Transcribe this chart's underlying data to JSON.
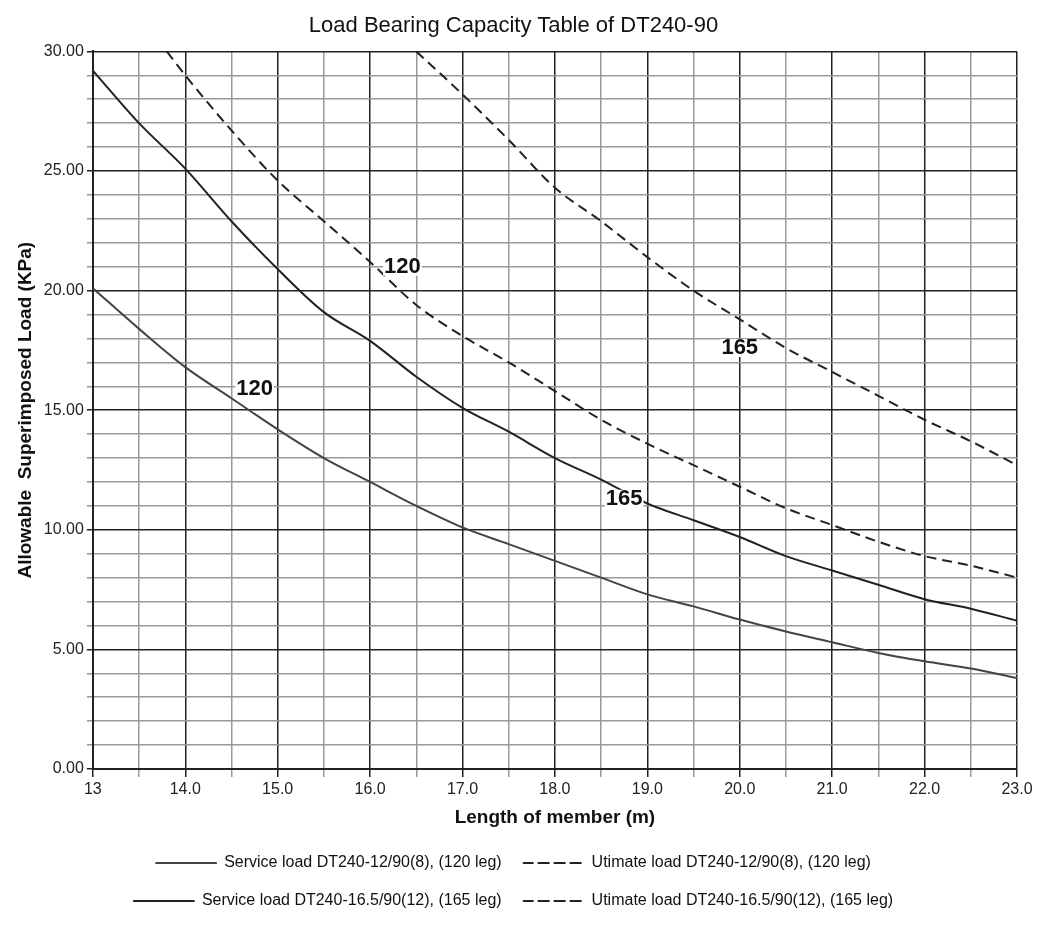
{
  "chart_data": {
    "type": "line",
    "title": "Load Bearing Capacity Table of DT240-90",
    "xlabel": "Length of member (m)",
    "ylabel": "Allowable  Superimposed Load (KPa)",
    "xlim": [
      13,
      23
    ],
    "xticks": [
      13,
      {
        "value": 13.5,
        "label": null
      },
      {
        "value": 14,
        "label": "14.0"
      },
      {
        "value": 14.5,
        "label": null
      },
      {
        "value": 15,
        "label": "15.0"
      },
      {
        "value": 15.5,
        "label": null
      },
      {
        "value": 16,
        "label": "16.0"
      },
      {
        "value": 16.5,
        "label": null
      },
      {
        "value": 17,
        "label": "17.0"
      },
      {
        "value": 17.5,
        "label": null
      },
      {
        "value": 18,
        "label": "18.0"
      },
      {
        "value": 18.5,
        "label": null
      },
      {
        "value": 19,
        "label": "19.0"
      },
      {
        "value": 19.5,
        "label": null
      },
      {
        "value": 20,
        "label": "20.0"
      },
      {
        "value": 20.5,
        "label": null
      },
      {
        "value": 21,
        "label": "21.0"
      },
      {
        "value": 21.5,
        "label": null
      },
      {
        "value": 22,
        "label": "22.0"
      },
      {
        "value": 22.5,
        "label": null
      },
      {
        "value": 23,
        "label": "23.0"
      }
    ],
    "ylim": [
      0,
      30
    ],
    "yticks": [
      {
        "value": 0,
        "label": "0.00"
      },
      {
        "value": 1,
        "label": null
      },
      {
        "value": 2,
        "label": null
      },
      {
        "value": 3,
        "label": null
      },
      {
        "value": 4,
        "label": null
      },
      {
        "value": 5,
        "label": "5.00"
      },
      {
        "value": 6,
        "label": null
      },
      {
        "value": 7,
        "label": null
      },
      {
        "value": 8,
        "label": null
      },
      {
        "value": 9,
        "label": null
      },
      {
        "value": 10,
        "label": "10.00"
      },
      {
        "value": 11,
        "label": null
      },
      {
        "value": 12,
        "label": null
      },
      {
        "value": 13,
        "label": null
      },
      {
        "value": 14,
        "label": null
      },
      {
        "value": 15,
        "label": "15.00"
      },
      {
        "value": 16,
        "label": null
      },
      {
        "value": 17,
        "label": null
      },
      {
        "value": 18,
        "label": null
      },
      {
        "value": 19,
        "label": null
      },
      {
        "value": 20,
        "label": "20.00"
      },
      {
        "value": 21,
        "label": null
      },
      {
        "value": 22,
        "label": null
      },
      {
        "value": 23,
        "label": null
      },
      {
        "value": 24,
        "label": null
      },
      {
        "value": 25,
        "label": "25.00"
      },
      {
        "value": 26,
        "label": null
      },
      {
        "value": 27,
        "label": null
      },
      {
        "value": 28,
        "label": null
      },
      {
        "value": 29,
        "label": null
      },
      {
        "value": 30,
        "label": "30.00"
      }
    ],
    "grid": true,
    "legend": "bottom",
    "marker": "none",
    "series": [
      {
        "name": "Service load DT240-12/90(8), (120 leg)",
        "color": "#444444",
        "line_style": "solid",
        "x": [
          13,
          13.5,
          14,
          14.5,
          15,
          15.5,
          16,
          16.5,
          17,
          17.5,
          18,
          18.5,
          19,
          19.5,
          20,
          20.5,
          21,
          21.5,
          22,
          22.5,
          23
        ],
        "values": [
          20.1,
          18.4,
          16.8,
          15.5,
          14.2,
          13.0,
          12.0,
          11.0,
          10.1,
          9.4,
          8.7,
          8.0,
          7.3,
          6.8,
          6.25,
          5.75,
          5.3,
          4.85,
          4.5,
          4.2,
          3.8
        ]
      },
      {
        "name": "Utimate load DT240-12/90(8), (120 leg)",
        "color": "#222222",
        "line_style": "dashed",
        "x": [
          13.8,
          14,
          14.5,
          15,
          15.5,
          16,
          16.5,
          17,
          17.5,
          18,
          18.5,
          19,
          19.5,
          20,
          20.5,
          21,
          21.5,
          22,
          22.5,
          23
        ],
        "values": [
          30,
          29.0,
          26.7,
          24.6,
          22.9,
          21.2,
          19.4,
          18.1,
          17.0,
          15.8,
          14.6,
          13.6,
          12.7,
          11.8,
          10.9,
          10.2,
          9.5,
          8.9,
          8.5,
          8.0
        ]
      },
      {
        "name": "Service load DT240-16.5/90(12), (165 leg)",
        "color": "#222222",
        "line_style": "solid",
        "x": [
          13,
          13.5,
          14,
          14.5,
          15,
          15.5,
          16,
          16.5,
          17,
          17.5,
          18,
          18.5,
          19,
          19.5,
          20,
          20.5,
          21,
          21.5,
          22,
          22.5,
          23
        ],
        "values": [
          29.2,
          27.0,
          25.1,
          22.9,
          20.9,
          19.1,
          17.9,
          16.4,
          15.1,
          14.1,
          13.0,
          12.1,
          11.1,
          10.4,
          9.7,
          8.9,
          8.3,
          7.7,
          7.1,
          6.7,
          6.2
        ]
      },
      {
        "name": "Utimate load DT240-16.5/90(12), (165 leg)",
        "color": "#222222",
        "line_style": "dashed",
        "x": [
          16.5,
          17,
          17.5,
          18,
          18.5,
          19,
          19.5,
          20,
          20.5,
          21,
          21.5,
          22,
          22.5,
          23
        ],
        "values": [
          30,
          28.2,
          26.3,
          24.3,
          22.9,
          21.4,
          20.0,
          18.8,
          17.6,
          16.6,
          15.6,
          14.6,
          13.7,
          12.7
        ]
      }
    ],
    "annotations": [
      {
        "text": "120",
        "x": 14.75,
        "y": 15.9
      },
      {
        "text": "120",
        "x": 16.35,
        "y": 21.0
      },
      {
        "text": "165",
        "x": 20.0,
        "y": 17.6
      },
      {
        "text": "165",
        "x": 18.75,
        "y": 11.3
      }
    ]
  }
}
